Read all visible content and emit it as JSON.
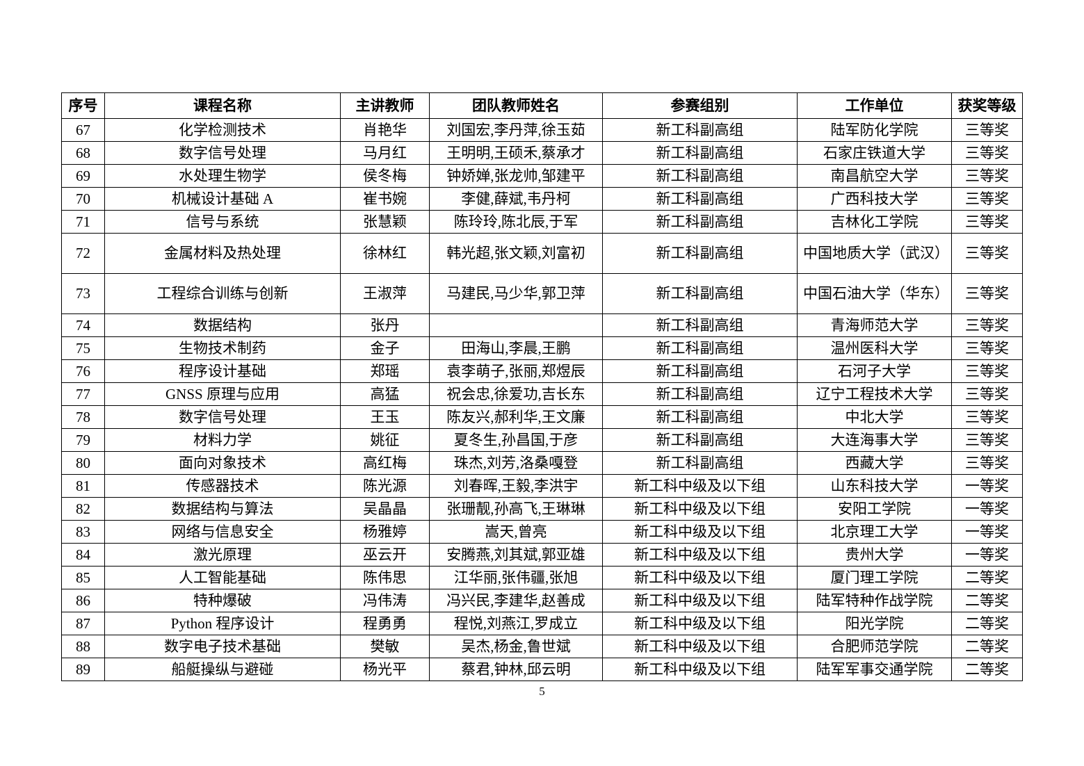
{
  "page": {
    "number": "5"
  },
  "table": {
    "headers": {
      "no": "序号",
      "course": "课程名称",
      "teacher": "主讲教师",
      "team": "团队教师姓名",
      "group": "参赛组别",
      "unit": "工作单位",
      "award": "获奖等级"
    },
    "rows": [
      {
        "no": "67",
        "course": "化学检测技术",
        "teacher": "肖艳华",
        "team": "刘国宏,李丹萍,徐玉茹",
        "group": "新工科副高组",
        "unit": "陆军防化学院",
        "award": "三等奖",
        "tall": false
      },
      {
        "no": "68",
        "course": "数字信号处理",
        "teacher": "马月红",
        "team": "王明明,王硕禾,蔡承才",
        "group": "新工科副高组",
        "unit": "石家庄铁道大学",
        "award": "三等奖",
        "tall": false
      },
      {
        "no": "69",
        "course": "水处理生物学",
        "teacher": "侯冬梅",
        "team": "钟娇婵,张龙帅,邹建平",
        "group": "新工科副高组",
        "unit": "南昌航空大学",
        "award": "三等奖",
        "tall": false
      },
      {
        "no": "70",
        "course": "机械设计基础 A",
        "teacher": "崔书婉",
        "team": "李健,薛斌,韦丹柯",
        "group": "新工科副高组",
        "unit": "广西科技大学",
        "award": "三等奖",
        "tall": false
      },
      {
        "no": "71",
        "course": "信号与系统",
        "teacher": "张慧颖",
        "team": "陈玲玲,陈北辰,于军",
        "group": "新工科副高组",
        "unit": "吉林化工学院",
        "award": "三等奖",
        "tall": false
      },
      {
        "no": "72",
        "course": "金属材料及热处理",
        "teacher": "徐林红",
        "team": "韩光超,张文颖,刘富初",
        "group": "新工科副高组",
        "unit": "中国地质大学（武汉）",
        "award": "三等奖",
        "tall": true
      },
      {
        "no": "73",
        "course": "工程综合训练与创新",
        "teacher": "王淑萍",
        "team": "马建民,马少华,郭卫萍",
        "group": "新工科副高组",
        "unit": "中国石油大学（华东）",
        "award": "三等奖",
        "tall": true
      },
      {
        "no": "74",
        "course": "数据结构",
        "teacher": "张丹",
        "team": "",
        "group": "新工科副高组",
        "unit": "青海师范大学",
        "award": "三等奖",
        "tall": false
      },
      {
        "no": "75",
        "course": "生物技术制药",
        "teacher": "金子",
        "team": "田海山,李晨,王鹏",
        "group": "新工科副高组",
        "unit": "温州医科大学",
        "award": "三等奖",
        "tall": false
      },
      {
        "no": "76",
        "course": "程序设计基础",
        "teacher": "郑瑶",
        "team": "袁李萌子,张丽,郑煜辰",
        "group": "新工科副高组",
        "unit": "石河子大学",
        "award": "三等奖",
        "tall": false
      },
      {
        "no": "77",
        "course": "GNSS 原理与应用",
        "teacher": "高猛",
        "team": "祝会忠,徐爱功,吉长东",
        "group": "新工科副高组",
        "unit": "辽宁工程技术大学",
        "award": "三等奖",
        "tall": false
      },
      {
        "no": "78",
        "course": "数字信号处理",
        "teacher": "王玉",
        "team": "陈友兴,郝利华,王文廉",
        "group": "新工科副高组",
        "unit": "中北大学",
        "award": "三等奖",
        "tall": false
      },
      {
        "no": "79",
        "course": "材料力学",
        "teacher": "姚征",
        "team": "夏冬生,孙昌国,于彦",
        "group": "新工科副高组",
        "unit": "大连海事大学",
        "award": "三等奖",
        "tall": false
      },
      {
        "no": "80",
        "course": "面向对象技术",
        "teacher": "高红梅",
        "team": "珠杰,刘芳,洛桑嘎登",
        "group": "新工科副高组",
        "unit": "西藏大学",
        "award": "三等奖",
        "tall": false
      },
      {
        "no": "81",
        "course": "传感器技术",
        "teacher": "陈光源",
        "team": "刘春晖,王毅,李洪宇",
        "group": "新工科中级及以下组",
        "unit": "山东科技大学",
        "award": "一等奖",
        "tall": false
      },
      {
        "no": "82",
        "course": "数据结构与算法",
        "teacher": "吴晶晶",
        "team": "张珊靓,孙高飞,王琳琳",
        "group": "新工科中级及以下组",
        "unit": "安阳工学院",
        "award": "一等奖",
        "tall": false
      },
      {
        "no": "83",
        "course": "网络与信息安全",
        "teacher": "杨雅婷",
        "team": "嵩天,曾亮",
        "group": "新工科中级及以下组",
        "unit": "北京理工大学",
        "award": "一等奖",
        "tall": false
      },
      {
        "no": "84",
        "course": "激光原理",
        "teacher": "巫云开",
        "team": "安腾燕,刘其斌,郭亚雄",
        "group": "新工科中级及以下组",
        "unit": "贵州大学",
        "award": "一等奖",
        "tall": false
      },
      {
        "no": "85",
        "course": "人工智能基础",
        "teacher": "陈伟思",
        "team": "江华丽,张伟疆,张旭",
        "group": "新工科中级及以下组",
        "unit": "厦门理工学院",
        "award": "二等奖",
        "tall": false
      },
      {
        "no": "86",
        "course": "特种爆破",
        "teacher": "冯伟涛",
        "team": "冯兴民,李建华,赵善成",
        "group": "新工科中级及以下组",
        "unit": "陆军特种作战学院",
        "award": "二等奖",
        "tall": false
      },
      {
        "no": "87",
        "course": "Python 程序设计",
        "teacher": "程勇勇",
        "team": "程悦,刘燕江,罗成立",
        "group": "新工科中级及以下组",
        "unit": "阳光学院",
        "award": "二等奖",
        "tall": false
      },
      {
        "no": "88",
        "course": "数字电子技术基础",
        "teacher": "樊敏",
        "team": "吴杰,杨金,鲁世斌",
        "group": "新工科中级及以下组",
        "unit": "合肥师范学院",
        "award": "二等奖",
        "tall": false
      },
      {
        "no": "89",
        "course": "船艇操纵与避碰",
        "teacher": "杨光平",
        "team": "蔡君,钟林,邱云明",
        "group": "新工科中级及以下组",
        "unit": "陆军军事交通学院",
        "award": "二等奖",
        "tall": false
      }
    ]
  }
}
